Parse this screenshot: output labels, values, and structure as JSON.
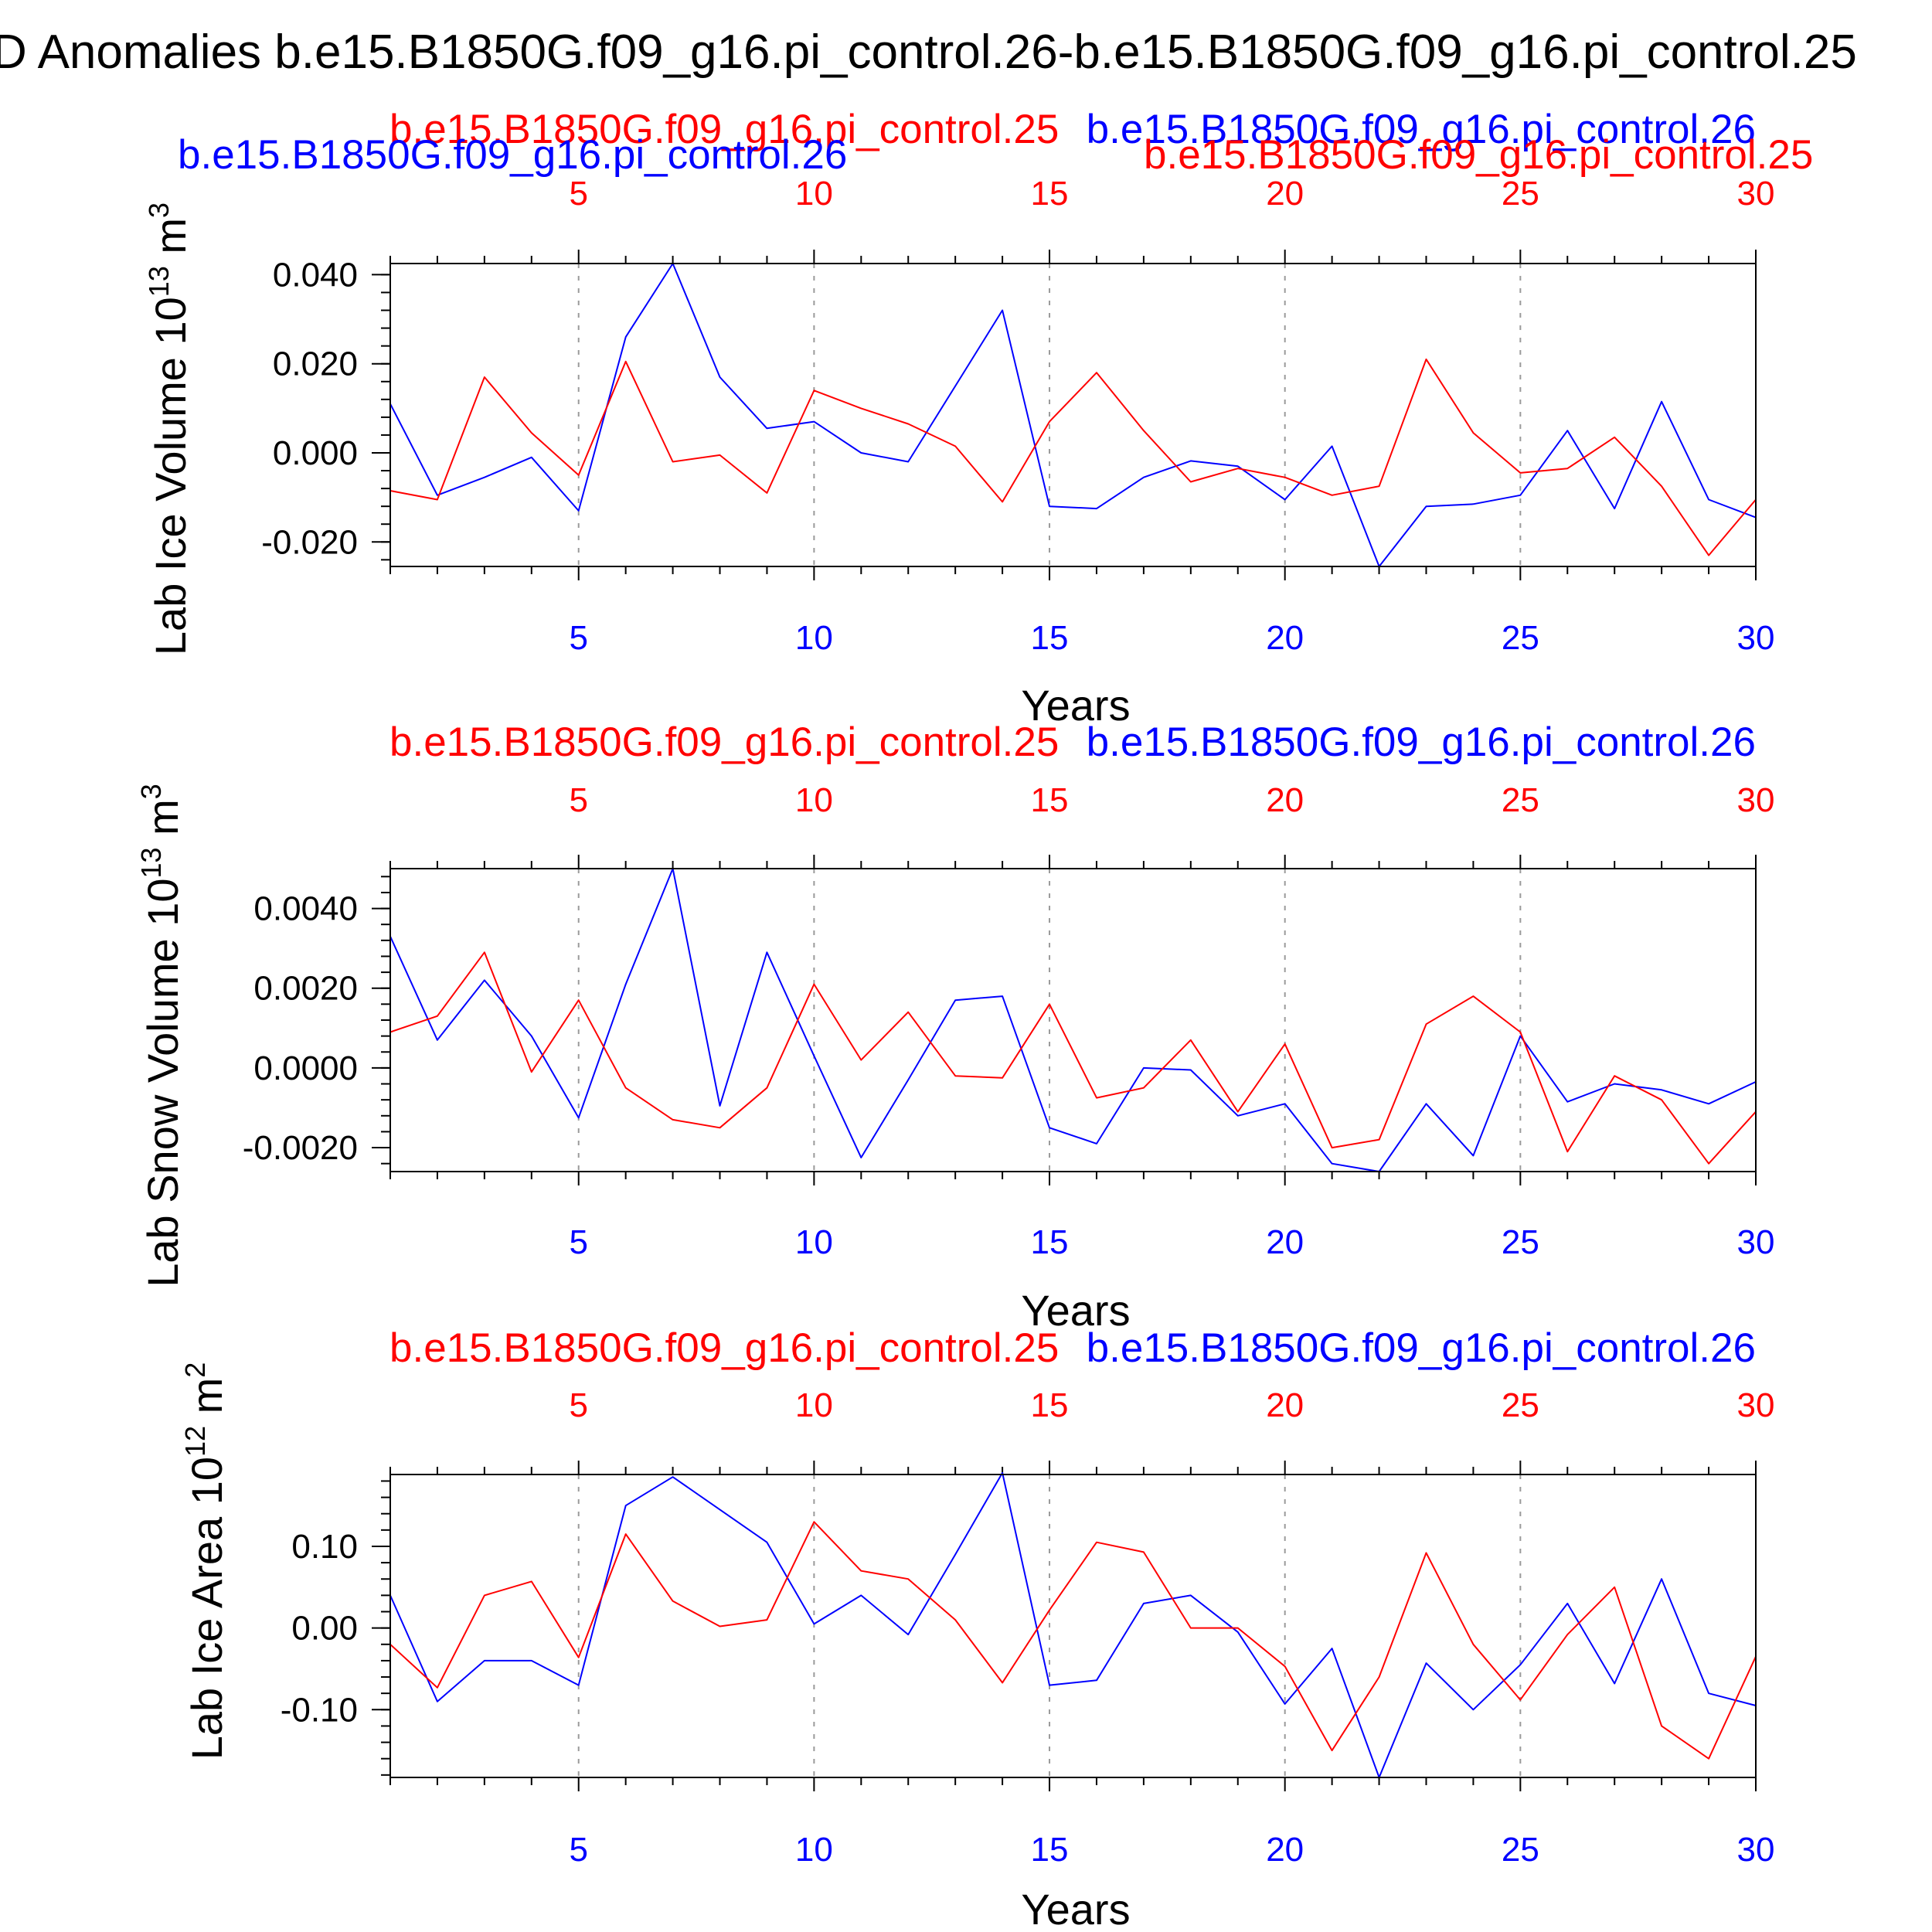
{
  "figure": {
    "title": "D Anomalies b.e15.B1850G.f09_g16.pi_control.26-b.e15.B1850G.f09_g16.pi_control.25"
  },
  "colors": {
    "series_blue": "#0000ff",
    "series_red": "#ff0000",
    "axis": "#000000",
    "grid": "#9a9a9a"
  },
  "chart_data": [
    {
      "type": "line",
      "title_blue": "b.e15.B1850G.f09_g16.pi_control.26",
      "title_red": "b.e15.B1850G.f09_g16.pi_control.25",
      "top_title_blue": "b.e15.B1850G.f09_g16.pi_control.26",
      "top_title_red": "b.e15.B1850G.f09_g16.pi_control.25",
      "ylabel": "Lab Ice Volume 10",
      "ylabel_exp": "13",
      "ylabel_unit": " m",
      "ylabel_unit_exp": "3",
      "xlabel": "Years",
      "xlim": [
        1,
        30
      ],
      "ylim": [
        -0.0255,
        0.0425
      ],
      "yticks": [
        -0.02,
        0.0,
        0.02,
        0.04
      ],
      "ytick_labels": [
        "-0.020",
        "0.000",
        "0.020",
        "0.040"
      ],
      "yminor_step": 0.004,
      "xticks": [
        5,
        10,
        15,
        20,
        25,
        30
      ],
      "xtick_labels": [
        "5",
        "10",
        "15",
        "20",
        "25",
        "30"
      ],
      "x": [
        1,
        2,
        3,
        4,
        5,
        6,
        7,
        8,
        9,
        10,
        11,
        12,
        13,
        14,
        15,
        16,
        17,
        18,
        19,
        20,
        21,
        22,
        23,
        24,
        25,
        26,
        27,
        28,
        29,
        30
      ],
      "series": [
        {
          "name": "b.e15.B1850G.f09_g16.pi_control.26",
          "color": "#0000ff",
          "values": [
            0.011,
            -0.0095,
            -0.0055,
            -0.001,
            -0.013,
            0.026,
            0.0425,
            0.017,
            0.0055,
            0.007,
            0.0,
            -0.002,
            0.015,
            0.032,
            -0.012,
            -0.0125,
            -0.0055,
            -0.0018,
            -0.003,
            -0.0105,
            0.0015,
            -0.0255,
            -0.012,
            -0.0115,
            -0.0095,
            0.005,
            -0.0125,
            0.0115,
            -0.0105,
            -0.0145
          ]
        },
        {
          "name": "b.e15.B1850G.f09_g16.pi_control.25",
          "color": "#ff0000",
          "values": [
            -0.0085,
            -0.0105,
            0.017,
            0.0045,
            -0.005,
            0.0205,
            -0.002,
            -0.0005,
            -0.009,
            0.014,
            0.01,
            0.0065,
            0.0015,
            -0.011,
            0.007,
            0.018,
            0.005,
            -0.0065,
            -0.0035,
            -0.0055,
            -0.0095,
            -0.0075,
            0.021,
            0.0045,
            -0.0045,
            -0.0035,
            0.0035,
            -0.0075,
            -0.023,
            -0.0105
          ]
        }
      ]
    },
    {
      "type": "line",
      "title_blue": "b.e15.B1850G.f09_g16.pi_control.26",
      "title_red": "b.e15.B1850G.f09_g16.pi_control.25",
      "ylabel": "Lab Snow Volume 10",
      "ylabel_exp": "13",
      "ylabel_unit": " m",
      "ylabel_unit_exp": "3",
      "xlabel": "Years",
      "xlim": [
        1,
        30
      ],
      "ylim": [
        -0.0026,
        0.005
      ],
      "yticks": [
        -0.002,
        0.0,
        0.002,
        0.004
      ],
      "ytick_labels": [
        "-0.0020",
        "0.0000",
        "0.0020",
        "0.0040"
      ],
      "yminor_step": 0.0004,
      "xticks": [
        5,
        10,
        15,
        20,
        25,
        30
      ],
      "xtick_labels": [
        "5",
        "10",
        "15",
        "20",
        "25",
        "30"
      ],
      "x": [
        1,
        2,
        3,
        4,
        5,
        6,
        7,
        8,
        9,
        10,
        11,
        12,
        13,
        14,
        15,
        16,
        17,
        18,
        19,
        20,
        21,
        22,
        23,
        24,
        25,
        26,
        27,
        28,
        29,
        30
      ],
      "series": [
        {
          "name": "b.e15.B1850G.f09_g16.pi_control.26",
          "color": "#0000ff",
          "values": [
            0.0033,
            0.0007,
            0.0022,
            0.0008,
            -0.00125,
            0.0021,
            0.005,
            -0.00095,
            0.0029,
            0.0003,
            -0.00225,
            -0.0003,
            0.0017,
            0.0018,
            -0.0015,
            -0.0019,
            0.0,
            -5e-05,
            -0.0012,
            -0.0009,
            -0.0024,
            -0.0026,
            -0.0009,
            -0.0022,
            0.0008,
            -0.00085,
            -0.0004,
            -0.00055,
            -0.0009,
            -0.00035
          ]
        },
        {
          "name": "b.e15.B1850G.f09_g16.pi_control.25",
          "color": "#ff0000",
          "values": [
            0.0009,
            0.0013,
            0.0029,
            -0.0001,
            0.0017,
            -0.0005,
            -0.0013,
            -0.0015,
            -0.0005,
            0.0021,
            0.0002,
            0.0014,
            -0.0002,
            -0.00025,
            0.0016,
            -0.00075,
            -0.0005,
            0.0007,
            -0.0011,
            0.0006,
            -0.002,
            -0.0018,
            0.0011,
            0.0018,
            0.0009,
            -0.0021,
            -0.0002,
            -0.0008,
            -0.0024,
            -0.0011
          ]
        }
      ]
    },
    {
      "type": "line",
      "title_blue": "b.e15.B1850G.f09_g16.pi_control.26",
      "title_red": "b.e15.B1850G.f09_g16.pi_control.25",
      "ylabel": "Lab Ice Area 10",
      "ylabel_exp": "12",
      "ylabel_unit": " m",
      "ylabel_unit_exp": "2",
      "xlabel": "Years",
      "xlim": [
        1,
        30
      ],
      "ylim": [
        -0.183,
        0.188
      ],
      "yticks": [
        -0.1,
        0.0,
        0.1
      ],
      "ytick_labels": [
        "-0.10",
        "0.00",
        "0.10"
      ],
      "yminor_step": 0.02,
      "xticks": [
        5,
        10,
        15,
        20,
        25,
        30
      ],
      "xtick_labels": [
        "5",
        "10",
        "15",
        "20",
        "25",
        "30"
      ],
      "x": [
        1,
        2,
        3,
        4,
        5,
        6,
        7,
        8,
        9,
        10,
        11,
        12,
        13,
        14,
        15,
        16,
        17,
        18,
        19,
        20,
        21,
        22,
        23,
        24,
        25,
        26,
        27,
        28,
        29,
        30
      ],
      "series": [
        {
          "name": "b.e15.B1850G.f09_g16.pi_control.26",
          "color": "#0000ff",
          "values": [
            0.04,
            -0.09,
            -0.04,
            -0.04,
            -0.07,
            0.15,
            0.185,
            0.145,
            0.105,
            0.005,
            0.04,
            -0.008,
            0.09,
            0.19,
            -0.07,
            -0.064,
            0.03,
            0.04,
            -0.005,
            -0.093,
            -0.025,
            -0.183,
            -0.043,
            -0.1,
            -0.045,
            0.03,
            -0.068,
            0.06,
            -0.08,
            -0.095
          ]
        },
        {
          "name": "b.e15.B1850G.f09_g16.pi_control.25",
          "color": "#ff0000",
          "values": [
            -0.02,
            -0.073,
            0.04,
            0.057,
            -0.036,
            0.115,
            0.033,
            0.002,
            0.01,
            0.13,
            0.07,
            0.06,
            0.01,
            -0.067,
            0.022,
            0.105,
            0.093,
            0.0,
            0.0,
            -0.047,
            -0.15,
            -0.06,
            0.092,
            -0.02,
            -0.088,
            -0.008,
            0.05,
            -0.12,
            -0.16,
            -0.035
          ]
        }
      ]
    }
  ]
}
